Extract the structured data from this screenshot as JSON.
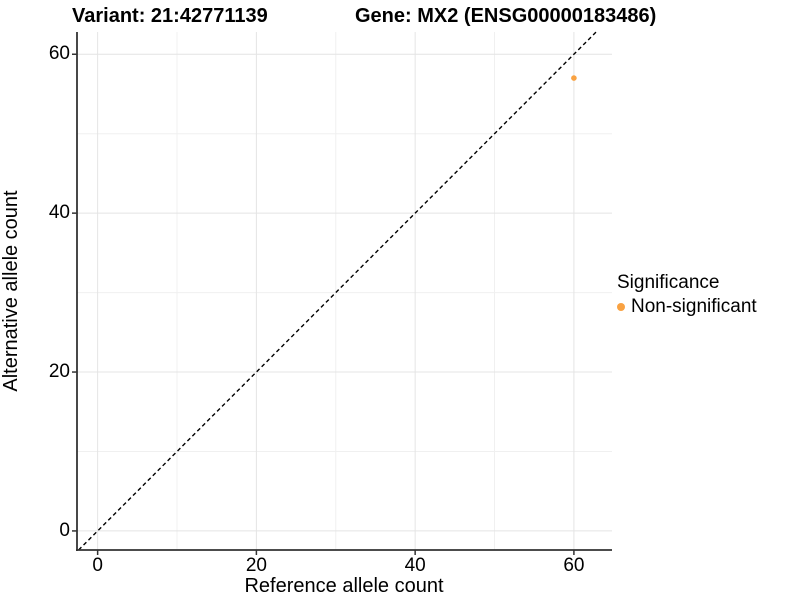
{
  "titles": {
    "variant": "Variant: 21:42771139",
    "gene": "Gene: MX2 (ENSG00000183486)"
  },
  "chart_data": {
    "type": "scatter",
    "title_left": "Variant: 21:42771139",
    "title_right": "Gene: MX2 (ENSG00000183486)",
    "xlabel": "Reference allele count",
    "ylabel": "Alternative allele count",
    "x_ticks": [
      0,
      20,
      40,
      60
    ],
    "y_ticks": [
      0,
      20,
      40,
      60
    ],
    "x_minor_ticks": [
      10,
      30,
      50
    ],
    "y_minor_ticks": [
      10,
      30,
      50
    ],
    "xlim": [
      -2.6,
      64.8
    ],
    "ylim": [
      -2.4,
      62.8
    ],
    "grid": {
      "major": true,
      "minor": true
    },
    "series": [
      {
        "name": "Non-significant",
        "color": "#F9A242",
        "points": [
          {
            "x": 60,
            "y": 57
          }
        ]
      }
    ],
    "reference_line": {
      "kind": "identity",
      "slope": 1,
      "intercept": 0,
      "linetype": "dashed",
      "color": "#000000"
    },
    "legend": {
      "title": "Significance",
      "position": "right",
      "entries": [
        {
          "label": "Non-significant",
          "color": "#F9A242"
        }
      ]
    },
    "colors": {
      "axis_line": "#333333",
      "tick_mark": "#333333",
      "grid_major": "#e4e4e4",
      "grid_minor": "#f0f0f0"
    }
  }
}
